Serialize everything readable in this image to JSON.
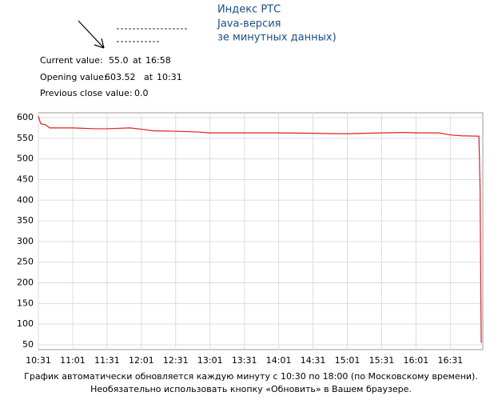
{
  "header": {
    "lines": [
      "Индекс РТС",
      "Java-версия",
      "зе минутных данных)"
    ]
  },
  "info": [
    {
      "label": "Current value:",
      "value": "55.0",
      "at": "at",
      "time": "16:58"
    },
    {
      "label": "Opening value:",
      "value": "603.52",
      "at": "at",
      "time": "10:31"
    },
    {
      "label": "Previous close value:",
      "value": "0.0"
    }
  ],
  "chart_data": {
    "type": "line",
    "x": [
      "10:31",
      "10:33",
      "10:37",
      "10:41",
      "11:01",
      "11:21",
      "11:31",
      "11:51",
      "12:01",
      "12:11",
      "12:31",
      "12:51",
      "13:01",
      "13:31",
      "14:01",
      "14:31",
      "14:51",
      "15:01",
      "15:31",
      "15:51",
      "16:01",
      "16:21",
      "16:31",
      "16:41",
      "16:56",
      "16:57",
      "16:58"
    ],
    "series": [
      {
        "color": "#e02020",
        "values": [
          603.52,
          585,
          583,
          575,
          575,
          573,
          573,
          575,
          572,
          568,
          567,
          565,
          563,
          563,
          563,
          562,
          561,
          561,
          563,
          564,
          563,
          563,
          558,
          556,
          555,
          430,
          55
        ]
      }
    ],
    "xlim": [
      "10:31",
      "16:58"
    ],
    "xticks": [
      "10:31",
      "11:01",
      "11:31",
      "12:01",
      "12:31",
      "13:01",
      "13:31",
      "14:01",
      "14:31",
      "15:01",
      "15:31",
      "16:01",
      "16:31"
    ],
    "ylim": [
      50,
      600
    ],
    "yticks": [
      50,
      100,
      150,
      200,
      250,
      300,
      350,
      400,
      450,
      500,
      550,
      600
    ],
    "grid": true
  },
  "footer": [
    "График автоматически обновляется каждую минуту с 10:30 по 18:00 (по Московскому времени).",
    "Необязательно использовать кнопку «Обновить» в Вашем браузере."
  ]
}
